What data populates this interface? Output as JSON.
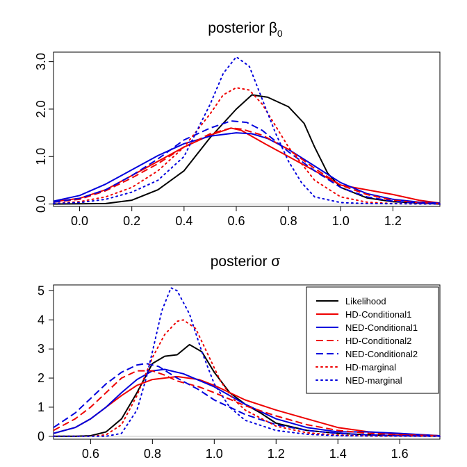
{
  "figure": {
    "title_top": "posterior β",
    "title_top_subscript": "0",
    "title_bottom": "posterior σ"
  },
  "styles": {
    "Likelihood": {
      "color": "#000000",
      "dash": "solid"
    },
    "HD-Conditional1": {
      "color": "#ee0000",
      "dash": "solid"
    },
    "NED-Conditional1": {
      "color": "#0000dd",
      "dash": "solid"
    },
    "HD-Conditional2": {
      "color": "#ee0000",
      "dash": "dashed"
    },
    "NED-Conditional2": {
      "color": "#0000dd",
      "dash": "dashed"
    },
    "HD-marginal": {
      "color": "#ee0000",
      "dash": "dotted"
    },
    "NED-marginal": {
      "color": "#0000dd",
      "dash": "dotted"
    }
  },
  "chart_data": [
    {
      "type": "line",
      "title": "posterior β0",
      "xlim": [
        -0.1,
        1.38
      ],
      "ylim": [
        -0.05,
        3.2
      ],
      "xticks": [
        "0.0",
        "0.2",
        "0.4",
        "0.6",
        "0.8",
        "1.0",
        "1.2"
      ],
      "yticks": [
        "0.0",
        "1.0",
        "2.0",
        "3.0"
      ],
      "series": [
        {
          "name": "Likelihood",
          "x": [
            -0.1,
            0.1,
            0.2,
            0.3,
            0.4,
            0.5,
            0.6,
            0.66,
            0.72,
            0.8,
            0.86,
            0.9,
            0.95,
            1.0,
            1.1,
            1.2,
            1.38
          ],
          "y": [
            0.0,
            0.01,
            0.08,
            0.3,
            0.7,
            1.4,
            2.0,
            2.3,
            2.25,
            2.05,
            1.7,
            1.2,
            0.65,
            0.35,
            0.13,
            0.05,
            0.0
          ]
        },
        {
          "name": "HD-Conditional1",
          "x": [
            -0.1,
            0.0,
            0.1,
            0.2,
            0.3,
            0.4,
            0.5,
            0.58,
            0.62,
            0.7,
            0.8,
            0.9,
            1.0,
            1.1,
            1.2,
            1.3,
            1.38
          ],
          "y": [
            0.05,
            0.12,
            0.3,
            0.6,
            0.9,
            1.2,
            1.45,
            1.6,
            1.55,
            1.3,
            1.0,
            0.7,
            0.4,
            0.3,
            0.2,
            0.08,
            0.02
          ]
        },
        {
          "name": "NED-Conditional1",
          "x": [
            -0.1,
            0.0,
            0.1,
            0.2,
            0.3,
            0.4,
            0.5,
            0.6,
            0.66,
            0.72,
            0.8,
            0.9,
            1.0,
            1.1,
            1.2,
            1.3,
            1.38
          ],
          "y": [
            0.06,
            0.18,
            0.42,
            0.72,
            1.02,
            1.27,
            1.43,
            1.5,
            1.48,
            1.38,
            1.15,
            0.8,
            0.45,
            0.22,
            0.1,
            0.04,
            0.02
          ]
        },
        {
          "name": "HD-Conditional2",
          "x": [
            -0.1,
            0.0,
            0.1,
            0.2,
            0.3,
            0.4,
            0.5,
            0.58,
            0.62,
            0.7,
            0.8,
            0.9,
            1.0,
            1.1,
            1.2,
            1.3,
            1.38
          ],
          "y": [
            0.04,
            0.1,
            0.28,
            0.55,
            0.85,
            1.2,
            1.48,
            1.6,
            1.58,
            1.45,
            1.15,
            0.75,
            0.4,
            0.2,
            0.08,
            0.03,
            0.01
          ]
        },
        {
          "name": "NED-Conditional2",
          "x": [
            -0.1,
            0.0,
            0.1,
            0.2,
            0.3,
            0.4,
            0.5,
            0.58,
            0.64,
            0.7,
            0.8,
            0.9,
            1.0,
            1.1,
            1.2,
            1.3,
            1.38
          ],
          "y": [
            0.04,
            0.12,
            0.3,
            0.6,
            0.95,
            1.35,
            1.6,
            1.75,
            1.72,
            1.55,
            1.1,
            0.7,
            0.35,
            0.15,
            0.06,
            0.02,
            0.01
          ]
        },
        {
          "name": "HD-marginal",
          "x": [
            -0.1,
            0.0,
            0.1,
            0.2,
            0.3,
            0.4,
            0.5,
            0.55,
            0.6,
            0.65,
            0.7,
            0.8,
            0.9,
            1.0,
            1.1,
            1.2,
            1.38
          ],
          "y": [
            0.01,
            0.05,
            0.15,
            0.35,
            0.7,
            1.2,
            1.9,
            2.3,
            2.45,
            2.4,
            2.1,
            1.2,
            0.5,
            0.15,
            0.04,
            0.01,
            0.0
          ]
        },
        {
          "name": "NED-marginal",
          "x": [
            -0.1,
            0.0,
            0.1,
            0.2,
            0.3,
            0.4,
            0.5,
            0.55,
            0.6,
            0.65,
            0.7,
            0.75,
            0.8,
            0.85,
            0.9,
            1.0,
            1.1,
            1.38
          ],
          "y": [
            0.01,
            0.03,
            0.1,
            0.25,
            0.5,
            1.0,
            2.1,
            2.75,
            3.1,
            2.9,
            2.2,
            1.5,
            0.9,
            0.45,
            0.15,
            0.03,
            0.01,
            0.0
          ]
        }
      ]
    },
    {
      "type": "line",
      "title": "posterior σ",
      "xlim": [
        0.48,
        1.73
      ],
      "ylim": [
        -0.1,
        5.2
      ],
      "xticks": [
        "0.6",
        "0.8",
        "1.0",
        "1.2",
        "1.4",
        "1.6"
      ],
      "yticks": [
        "0",
        "1",
        "2",
        "3",
        "4",
        "5"
      ],
      "legend": {
        "position": "top-right",
        "items": [
          "Likelihood",
          "HD-Conditional1",
          "NED-Conditional1",
          "HD-Conditional2",
          "NED-Conditional2",
          "HD-marginal",
          "NED-marginal"
        ]
      },
      "series": [
        {
          "name": "Likelihood",
          "x": [
            0.48,
            0.55,
            0.6,
            0.65,
            0.7,
            0.75,
            0.8,
            0.84,
            0.88,
            0.92,
            0.96,
            1.0,
            1.05,
            1.1,
            1.15,
            1.2,
            1.3,
            1.4,
            1.5,
            1.6,
            1.73
          ],
          "y": [
            0.0,
            0.0,
            0.02,
            0.15,
            0.6,
            1.5,
            2.5,
            2.75,
            2.8,
            3.15,
            2.9,
            2.2,
            1.5,
            1.1,
            0.8,
            0.45,
            0.2,
            0.1,
            0.05,
            0.02,
            0.01
          ]
        },
        {
          "name": "HD-Conditional1",
          "x": [
            0.48,
            0.55,
            0.6,
            0.65,
            0.7,
            0.75,
            0.8,
            0.88,
            0.95,
            1.0,
            1.1,
            1.2,
            1.3,
            1.4,
            1.5,
            1.6,
            1.73
          ],
          "y": [
            0.1,
            0.3,
            0.6,
            1.0,
            1.4,
            1.75,
            1.95,
            2.05,
            1.95,
            1.75,
            1.25,
            0.9,
            0.6,
            0.3,
            0.15,
            0.07,
            0.02
          ]
        },
        {
          "name": "NED-Conditional1",
          "x": [
            0.48,
            0.55,
            0.6,
            0.65,
            0.7,
            0.75,
            0.8,
            0.84,
            0.9,
            1.0,
            1.1,
            1.2,
            1.3,
            1.4,
            1.5,
            1.6,
            1.73
          ],
          "y": [
            0.1,
            0.3,
            0.6,
            1.0,
            1.5,
            1.95,
            2.25,
            2.3,
            2.15,
            1.7,
            1.1,
            0.6,
            0.3,
            0.15,
            0.15,
            0.1,
            0.02
          ]
        },
        {
          "name": "HD-Conditional2",
          "x": [
            0.48,
            0.55,
            0.6,
            0.65,
            0.7,
            0.75,
            0.8,
            0.84,
            0.88,
            0.95,
            1.0,
            1.1,
            1.2,
            1.3,
            1.4,
            1.5,
            1.6,
            1.73
          ],
          "y": [
            0.2,
            0.6,
            1.0,
            1.5,
            2.0,
            2.25,
            2.25,
            2.1,
            1.9,
            1.7,
            1.5,
            1.05,
            0.7,
            0.4,
            0.2,
            0.1,
            0.05,
            0.02
          ]
        },
        {
          "name": "NED-Conditional2",
          "x": [
            0.48,
            0.55,
            0.6,
            0.65,
            0.7,
            0.75,
            0.78,
            0.82,
            0.88,
            0.95,
            1.0,
            1.1,
            1.2,
            1.3,
            1.4,
            1.5,
            1.6,
            1.73
          ],
          "y": [
            0.3,
            0.8,
            1.3,
            1.8,
            2.2,
            2.45,
            2.5,
            2.4,
            2.0,
            1.6,
            1.25,
            0.75,
            0.4,
            0.2,
            0.1,
            0.05,
            0.02,
            0.01
          ]
        },
        {
          "name": "HD-marginal",
          "x": [
            0.48,
            0.6,
            0.65,
            0.7,
            0.75,
            0.8,
            0.84,
            0.88,
            0.9,
            0.94,
            0.98,
            1.02,
            1.06,
            1.1,
            1.2,
            1.3,
            1.4,
            1.5,
            1.73
          ],
          "y": [
            0.0,
            0.0,
            0.05,
            0.4,
            1.4,
            2.7,
            3.5,
            3.95,
            4.0,
            3.7,
            2.8,
            1.9,
            1.3,
            0.9,
            0.35,
            0.12,
            0.04,
            0.01,
            0.0
          ]
        },
        {
          "name": "NED-marginal",
          "x": [
            0.48,
            0.65,
            0.7,
            0.75,
            0.78,
            0.8,
            0.83,
            0.86,
            0.88,
            0.92,
            0.96,
            1.0,
            1.05,
            1.1,
            1.2,
            1.3,
            1.4,
            1.73
          ],
          "y": [
            0.0,
            0.0,
            0.1,
            0.9,
            2.0,
            2.9,
            4.3,
            5.1,
            5.0,
            4.2,
            2.9,
            1.8,
            1.0,
            0.55,
            0.2,
            0.07,
            0.02,
            0.0
          ]
        }
      ]
    }
  ]
}
